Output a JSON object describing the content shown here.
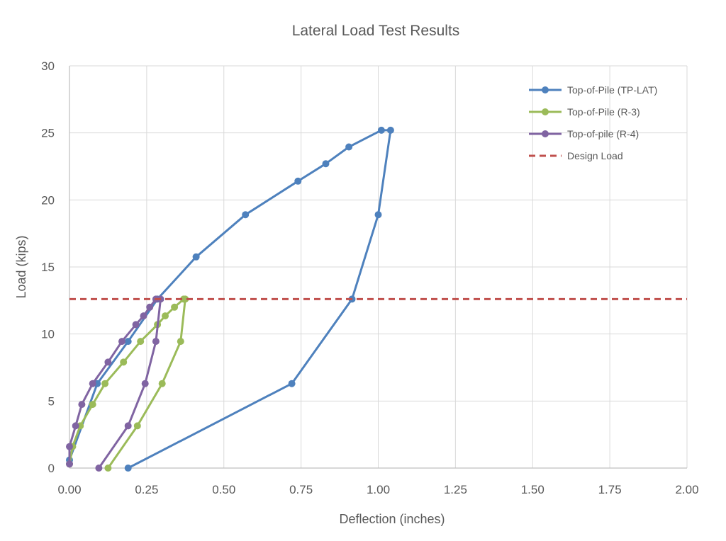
{
  "chart_data": {
    "type": "scatter",
    "title": "Lateral Load Test Results",
    "xlabel": "Deflection (inches)",
    "ylabel": "Load (kips)",
    "xlim": [
      0,
      2
    ],
    "ylim": [
      0,
      30
    ],
    "xticks": [
      "0.00",
      "0.25",
      "0.50",
      "0.75",
      "1.00",
      "1.25",
      "1.50",
      "1.75",
      "2.00"
    ],
    "yticks": [
      "0",
      "5",
      "10",
      "15",
      "20",
      "25",
      "30"
    ],
    "grid": true,
    "legend_position": "top-right",
    "series": [
      {
        "name": "Top-of-Pile (TP-LAT)",
        "color": "#4e81bd",
        "marker": true,
        "dashed": false,
        "points": [
          [
            0.0,
            0.6
          ],
          [
            0.09,
            6.3
          ],
          [
            0.19,
            9.45
          ],
          [
            0.285,
            12.6
          ],
          [
            0.41,
            15.75
          ],
          [
            0.57,
            18.9
          ],
          [
            0.74,
            21.4
          ],
          [
            0.83,
            22.7
          ],
          [
            0.905,
            23.95
          ],
          [
            1.01,
            25.2
          ],
          [
            1.04,
            25.2
          ],
          [
            1.0,
            18.9
          ],
          [
            0.915,
            12.6
          ],
          [
            0.72,
            6.3
          ],
          [
            0.19,
            0.0
          ]
        ]
      },
      {
        "name": "Top-of-Pile (R-3)",
        "color": "#9bbb59",
        "marker": true,
        "dashed": false,
        "points": [
          [
            0.0,
            0.3
          ],
          [
            0.01,
            1.6
          ],
          [
            0.035,
            3.15
          ],
          [
            0.075,
            4.75
          ],
          [
            0.115,
            6.3
          ],
          [
            0.175,
            7.9
          ],
          [
            0.23,
            9.45
          ],
          [
            0.285,
            10.7
          ],
          [
            0.31,
            11.35
          ],
          [
            0.34,
            12.0
          ],
          [
            0.37,
            12.6
          ],
          [
            0.375,
            12.6
          ],
          [
            0.36,
            9.45
          ],
          [
            0.3,
            6.3
          ],
          [
            0.22,
            3.15
          ],
          [
            0.125,
            0.0
          ]
        ]
      },
      {
        "name": "Top-of-pile (R-4)",
        "color": "#8064a2",
        "marker": true,
        "dashed": false,
        "points": [
          [
            0.0,
            0.3
          ],
          [
            0.0,
            1.6
          ],
          [
            0.02,
            3.15
          ],
          [
            0.04,
            4.75
          ],
          [
            0.075,
            6.3
          ],
          [
            0.125,
            7.9
          ],
          [
            0.17,
            9.45
          ],
          [
            0.215,
            10.7
          ],
          [
            0.24,
            11.35
          ],
          [
            0.26,
            12.0
          ],
          [
            0.28,
            12.6
          ],
          [
            0.295,
            12.6
          ],
          [
            0.28,
            9.45
          ],
          [
            0.245,
            6.3
          ],
          [
            0.19,
            3.15
          ],
          [
            0.095,
            0.0
          ]
        ]
      },
      {
        "name": "Design Load",
        "color": "#c0504d",
        "marker": false,
        "dashed": true,
        "points": [
          [
            0.0,
            12.6
          ],
          [
            2.0,
            12.6
          ]
        ]
      }
    ]
  }
}
